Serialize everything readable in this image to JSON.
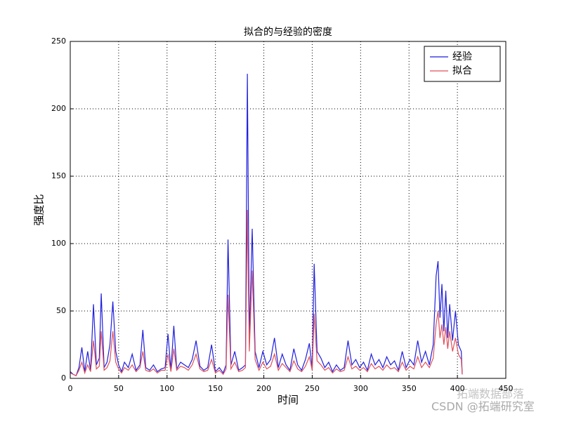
{
  "chart_data": {
    "type": "line",
    "title": "拟合的与经验的密度",
    "x_label": "时间",
    "y_label": "强度比",
    "x": [
      0,
      3,
      6,
      9,
      12,
      15,
      18,
      21,
      24,
      27,
      30,
      32,
      35,
      38,
      41,
      44,
      47,
      50,
      53,
      56,
      60,
      64,
      68,
      72,
      75,
      78,
      82,
      86,
      90,
      94,
      98,
      101,
      104,
      107,
      110,
      114,
      118,
      122,
      126,
      130,
      134,
      138,
      142,
      146,
      150,
      154,
      158,
      161,
      163,
      166,
      170,
      174,
      178,
      181,
      183,
      185,
      188,
      191,
      195,
      199,
      203,
      207,
      211,
      215,
      219,
      223,
      227,
      231,
      235,
      239,
      243,
      247,
      250,
      252,
      255,
      259,
      263,
      267,
      271,
      275,
      279,
      283,
      287,
      291,
      295,
      299,
      303,
      307,
      311,
      315,
      319,
      323,
      327,
      331,
      335,
      339,
      343,
      347,
      351,
      355,
      359,
      363,
      367,
      371,
      375,
      378,
      380,
      382,
      384,
      386,
      388,
      390,
      392,
      395,
      398,
      401,
      404,
      405
    ],
    "series": [
      {
        "name": "经验",
        "color": "#1f1fe0",
        "values": [
          5,
          3,
          2,
          8,
          23,
          5,
          20,
          6,
          55,
          10,
          15,
          63,
          8,
          12,
          25,
          57,
          20,
          10,
          5,
          12,
          8,
          18,
          6,
          10,
          36,
          8,
          6,
          10,
          5,
          7,
          8,
          33,
          6,
          39,
          7,
          12,
          10,
          8,
          14,
          28,
          9,
          6,
          8,
          25,
          5,
          8,
          4,
          10,
          103,
          10,
          20,
          6,
          8,
          10,
          226,
          30,
          111,
          20,
          8,
          20,
          10,
          14,
          30,
          8,
          18,
          10,
          6,
          22,
          10,
          6,
          14,
          26,
          8,
          85,
          20,
          15,
          8,
          12,
          5,
          10,
          6,
          8,
          28,
          10,
          14,
          8,
          12,
          6,
          18,
          10,
          14,
          8,
          16,
          10,
          13,
          6,
          20,
          8,
          14,
          10,
          28,
          12,
          20,
          10,
          25,
          76,
          87,
          45,
          70,
          35,
          65,
          30,
          55,
          28,
          50,
          25,
          20,
          3
        ]
      },
      {
        "name": "拟合",
        "color": "#e0505a",
        "values": [
          4,
          3,
          2,
          6,
          12,
          4,
          10,
          5,
          28,
          7,
          9,
          35,
          6,
          8,
          13,
          35,
          12,
          7,
          4,
          8,
          6,
          10,
          5,
          8,
          20,
          6,
          5,
          7,
          4,
          6,
          6,
          18,
          5,
          22,
          6,
          9,
          8,
          6,
          10,
          18,
          7,
          5,
          6,
          14,
          4,
          6,
          3,
          7,
          62,
          7,
          12,
          5,
          6,
          8,
          125,
          20,
          80,
          14,
          6,
          12,
          7,
          9,
          18,
          6,
          11,
          8,
          5,
          13,
          7,
          5,
          9,
          16,
          6,
          48,
          13,
          10,
          6,
          8,
          4,
          7,
          5,
          6,
          16,
          7,
          9,
          6,
          8,
          5,
          11,
          7,
          9,
          6,
          10,
          7,
          8,
          5,
          12,
          6,
          9,
          7,
          16,
          8,
          12,
          8,
          15,
          40,
          50,
          30,
          40,
          25,
          38,
          22,
          35,
          20,
          30,
          18,
          14,
          3
        ]
      }
    ],
    "xlim": [
      0,
      450
    ],
    "xticks": [
      0,
      50,
      100,
      150,
      200,
      250,
      300,
      350,
      400,
      450
    ],
    "ylim": [
      0,
      250
    ],
    "yticks": [
      0,
      50,
      100,
      150,
      200,
      250
    ],
    "grid": true,
    "legend": "upper right",
    "watermark": [
      "拓端数据部落",
      "CSDN @拓端研究室"
    ]
  }
}
